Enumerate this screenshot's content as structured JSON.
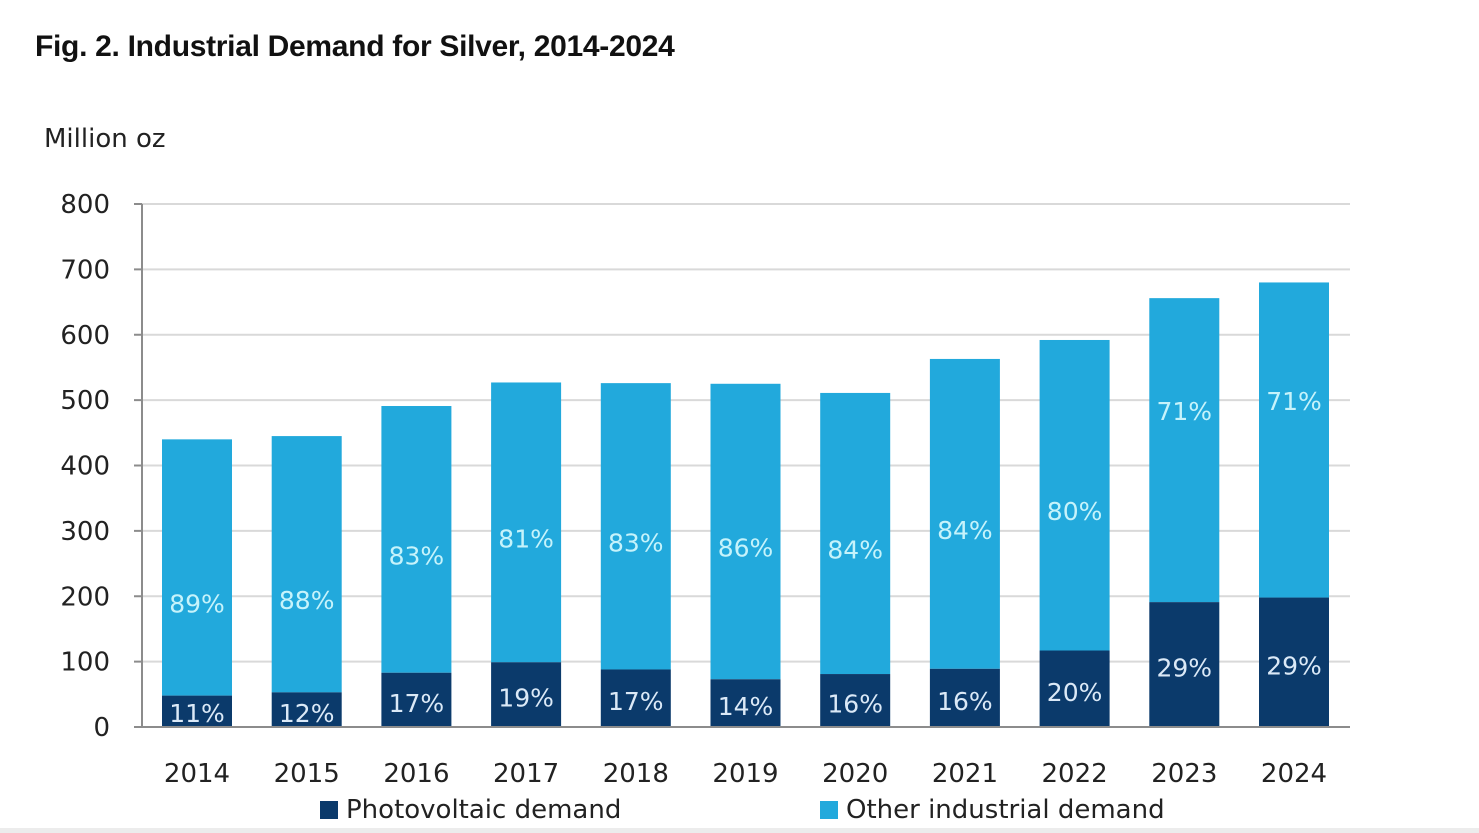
{
  "title": "Fig. 2. Industrial Demand for Silver, 2014-2024",
  "colors": {
    "photovoltaic": "#0b3a6b",
    "other": "#22a9dc",
    "other_label": "#c6f3fb",
    "pv_label": "#dbe9f7",
    "grid": "#d9d9d9",
    "axis": "#8c8c8c"
  },
  "chart_data": {
    "type": "bar",
    "stacked": true,
    "title": "Fig. 2. Industrial Demand for Silver, 2014-2024",
    "xlabel": "",
    "ylabel": "Million oz",
    "ylim": [
      0,
      800
    ],
    "yticks": [
      0,
      100,
      200,
      300,
      400,
      500,
      600,
      700,
      800
    ],
    "grid": true,
    "legend_position": "bottom",
    "categories": [
      "2014",
      "2015",
      "2016",
      "2017",
      "2018",
      "2019",
      "2020",
      "2021",
      "2022",
      "2023",
      "2024"
    ],
    "series": [
      {
        "name": "Photovoltaic demand",
        "values": [
          48,
          53,
          83,
          99,
          88,
          73,
          81,
          89,
          117,
          191,
          198
        ],
        "share_labels": [
          "11%",
          "12%",
          "17%",
          "19%",
          "17%",
          "14%",
          "16%",
          "16%",
          "20%",
          "29%",
          "29%"
        ]
      },
      {
        "name": "Other industrial demand",
        "values": [
          392,
          392,
          408,
          428,
          438,
          452,
          430,
          474,
          475,
          465,
          482
        ],
        "share_labels": [
          "89%",
          "88%",
          "83%",
          "81%",
          "83%",
          "86%",
          "84%",
          "84%",
          "80%",
          "71%",
          "71%"
        ]
      }
    ],
    "totals": [
      440,
      445,
      491,
      527,
      526,
      525,
      511,
      563,
      592,
      656,
      680
    ]
  },
  "legend": {
    "items": [
      {
        "label": "Photovoltaic demand"
      },
      {
        "label": "Other industrial demand"
      }
    ]
  }
}
